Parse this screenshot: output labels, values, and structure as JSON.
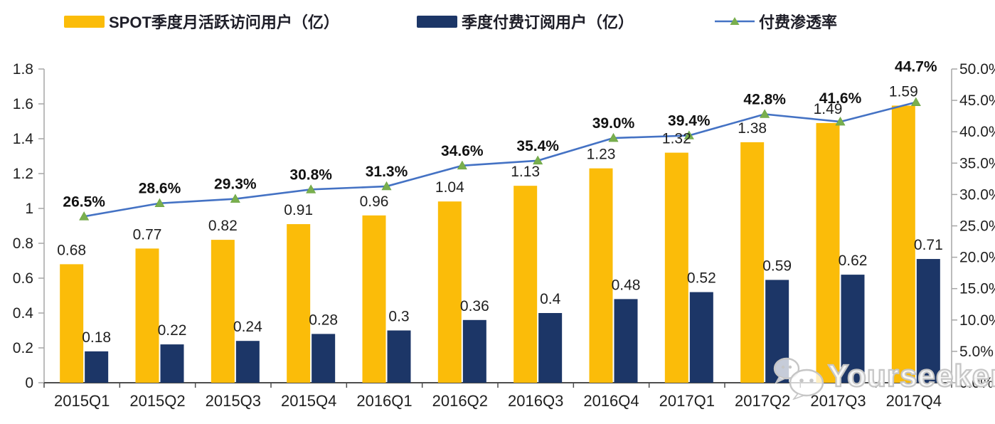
{
  "legend": {
    "items": [
      {
        "label": "SPOT季度月活跃访问用户（亿）",
        "color": "#FBBC09",
        "type": "bar"
      },
      {
        "label": "季度付费订阅用户（亿）",
        "color": "#1C3667",
        "type": "bar"
      },
      {
        "label": "付费渗透率",
        "color": "#4472C4",
        "marker_color": "#79AF4E",
        "type": "line"
      }
    ]
  },
  "watermark": {
    "text": "Yourseeker"
  },
  "chart_data": {
    "type": "bar",
    "subtype": "combo-bar-line",
    "title": "",
    "xlabel": "",
    "ylabel": "",
    "grid": false,
    "legend_position": "top",
    "categories": [
      "2015Q1",
      "2015Q2",
      "2015Q3",
      "2015Q4",
      "2016Q1",
      "2016Q2",
      "2016Q3",
      "2016Q4",
      "2017Q1",
      "2017Q2",
      "2017Q3",
      "2017Q4"
    ],
    "left_axis": {
      "min": 0,
      "max": 1.8,
      "step": 0.2,
      "tick_labels": [
        "0",
        "0.2",
        "0.4",
        "0.6",
        "0.8",
        "1",
        "1.2",
        "1.4",
        "1.6",
        "1.8"
      ]
    },
    "right_axis": {
      "min": 0,
      "max": 50,
      "step": 5,
      "tick_labels": [
        "0.0%",
        "5.0%",
        "10.0%",
        "15.0%",
        "20.0%",
        "25.0%",
        "30.0%",
        "35.0%",
        "40.0%",
        "45.0%",
        "50.0%"
      ]
    },
    "series": [
      {
        "name": "SPOT季度月活跃访问用户（亿）",
        "type": "bar",
        "axis": "left",
        "color": "#FBBC09",
        "values": [
          0.68,
          0.77,
          0.82,
          0.91,
          0.96,
          1.04,
          1.13,
          1.23,
          1.32,
          1.38,
          1.49,
          1.59
        ],
        "labels": [
          "0.68",
          "0.77",
          "0.82",
          "0.91",
          "0.96",
          "1.04",
          "1.13",
          "1.23",
          "1.32",
          "1.38",
          "1.49",
          "1.59"
        ]
      },
      {
        "name": "季度付费订阅用户（亿）",
        "type": "bar",
        "axis": "left",
        "color": "#1C3667",
        "values": [
          0.18,
          0.22,
          0.24,
          0.28,
          0.3,
          0.36,
          0.4,
          0.48,
          0.52,
          0.59,
          0.62,
          0.71
        ],
        "labels": [
          "0.18",
          "0.22",
          "0.24",
          "0.28",
          "0.3",
          "0.36",
          "0.4",
          "0.48",
          "0.52",
          "0.59",
          "0.62",
          "0.71"
        ]
      },
      {
        "name": "付费渗透率",
        "type": "line",
        "axis": "right",
        "color": "#4472C4",
        "marker": "triangle",
        "marker_color": "#79AF4E",
        "values": [
          26.5,
          28.6,
          29.3,
          30.8,
          31.3,
          34.6,
          35.4,
          39.0,
          39.4,
          42.8,
          41.6,
          44.7
        ],
        "labels": [
          "26.5%",
          "28.6%",
          "29.3%",
          "30.8%",
          "31.3%",
          "34.6%",
          "35.4%",
          "39.0%",
          "39.4%",
          "42.8%",
          "41.6%",
          "44.7%"
        ]
      }
    ]
  }
}
